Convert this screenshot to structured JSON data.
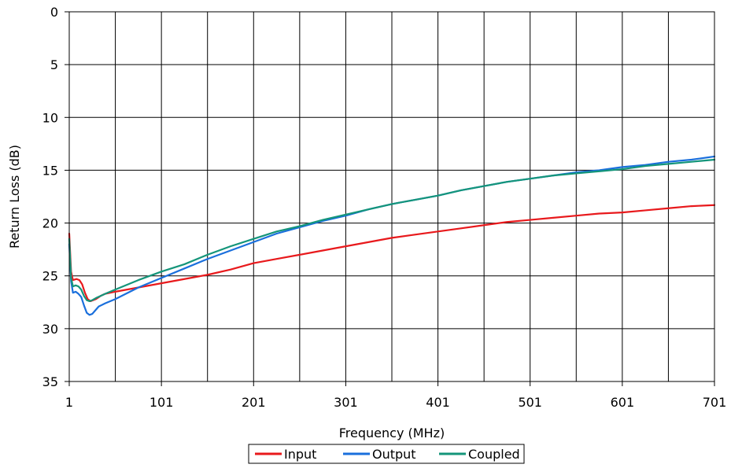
{
  "chart_data": {
    "type": "line",
    "title": "",
    "xlabel": "Frequency (MHz)",
    "ylabel": "Return Loss (dB)",
    "xlim": [
      1,
      701
    ],
    "ylim": [
      0,
      35
    ],
    "y_inverted": true,
    "grid": true,
    "legend_position": "bottom-center",
    "x_ticks": [
      "1",
      "101",
      "201",
      "301",
      "401",
      "501",
      "601",
      "701"
    ],
    "y_ticks": [
      "0",
      "5",
      "10",
      "15",
      "20",
      "25",
      "30",
      "35"
    ],
    "series": [
      {
        "name": "Input",
        "color": "#e8191c",
        "points": [
          [
            1,
            21.0
          ],
          [
            3,
            24.6
          ],
          [
            5,
            25.4
          ],
          [
            9,
            25.3
          ],
          [
            12,
            25.4
          ],
          [
            15,
            25.8
          ],
          [
            18,
            26.6
          ],
          [
            21,
            27.2
          ],
          [
            24,
            27.4
          ],
          [
            27,
            27.3
          ],
          [
            30,
            27.2
          ],
          [
            35,
            26.9
          ],
          [
            40,
            26.7
          ],
          [
            51,
            26.5
          ],
          [
            76,
            26.1
          ],
          [
            101,
            25.7
          ],
          [
            126,
            25.3
          ],
          [
            151,
            24.9
          ],
          [
            176,
            24.4
          ],
          [
            201,
            23.8
          ],
          [
            226,
            23.4
          ],
          [
            251,
            23.0
          ],
          [
            276,
            22.6
          ],
          [
            301,
            22.2
          ],
          [
            326,
            21.8
          ],
          [
            351,
            21.4
          ],
          [
            376,
            21.1
          ],
          [
            401,
            20.8
          ],
          [
            426,
            20.5
          ],
          [
            451,
            20.2
          ],
          [
            476,
            19.9
          ],
          [
            501,
            19.7
          ],
          [
            526,
            19.5
          ],
          [
            551,
            19.3
          ],
          [
            576,
            19.1
          ],
          [
            601,
            19.0
          ],
          [
            626,
            18.8
          ],
          [
            651,
            18.6
          ],
          [
            676,
            18.4
          ],
          [
            701,
            18.3
          ]
        ]
      },
      {
        "name": "Output",
        "color": "#1a6fdc",
        "points": [
          [
            1,
            22.0
          ],
          [
            3,
            25.5
          ],
          [
            5,
            26.6
          ],
          [
            8,
            26.5
          ],
          [
            11,
            26.7
          ],
          [
            14,
            27.0
          ],
          [
            17,
            27.8
          ],
          [
            20,
            28.5
          ],
          [
            23,
            28.7
          ],
          [
            26,
            28.6
          ],
          [
            29,
            28.3
          ],
          [
            33,
            27.9
          ],
          [
            40,
            27.6
          ],
          [
            51,
            27.2
          ],
          [
            76,
            26.1
          ],
          [
            101,
            25.2
          ],
          [
            126,
            24.3
          ],
          [
            151,
            23.4
          ],
          [
            176,
            22.6
          ],
          [
            201,
            21.8
          ],
          [
            226,
            21.0
          ],
          [
            251,
            20.4
          ],
          [
            276,
            19.8
          ],
          [
            301,
            19.3
          ],
          [
            326,
            18.7
          ],
          [
            351,
            18.2
          ],
          [
            376,
            17.8
          ],
          [
            401,
            17.4
          ],
          [
            426,
            16.9
          ],
          [
            451,
            16.5
          ],
          [
            476,
            16.1
          ],
          [
            501,
            15.8
          ],
          [
            526,
            15.5
          ],
          [
            551,
            15.2
          ],
          [
            576,
            15.0
          ],
          [
            601,
            14.7
          ],
          [
            626,
            14.5
          ],
          [
            651,
            14.2
          ],
          [
            676,
            14.0
          ],
          [
            701,
            13.7
          ]
        ]
      },
      {
        "name": "Coupled",
        "color": "#14957a",
        "points": [
          [
            1,
            21.5
          ],
          [
            3,
            25.2
          ],
          [
            5,
            26.0
          ],
          [
            8,
            25.9
          ],
          [
            11,
            26.0
          ],
          [
            14,
            26.3
          ],
          [
            17,
            26.9
          ],
          [
            20,
            27.3
          ],
          [
            23,
            27.4
          ],
          [
            26,
            27.3
          ],
          [
            30,
            27.1
          ],
          [
            35,
            26.9
          ],
          [
            40,
            26.7
          ],
          [
            51,
            26.3
          ],
          [
            76,
            25.4
          ],
          [
            101,
            24.6
          ],
          [
            126,
            23.9
          ],
          [
            151,
            23.0
          ],
          [
            176,
            22.2
          ],
          [
            201,
            21.5
          ],
          [
            226,
            20.8
          ],
          [
            251,
            20.3
          ],
          [
            276,
            19.7
          ],
          [
            301,
            19.2
          ],
          [
            326,
            18.7
          ],
          [
            351,
            18.2
          ],
          [
            376,
            17.8
          ],
          [
            401,
            17.4
          ],
          [
            426,
            16.9
          ],
          [
            451,
            16.5
          ],
          [
            476,
            16.1
          ],
          [
            501,
            15.8
          ],
          [
            526,
            15.5
          ],
          [
            551,
            15.3
          ],
          [
            576,
            15.1
          ],
          [
            601,
            14.9
          ],
          [
            626,
            14.6
          ],
          [
            651,
            14.4
          ],
          [
            676,
            14.2
          ],
          [
            701,
            14.0
          ]
        ]
      }
    ]
  }
}
